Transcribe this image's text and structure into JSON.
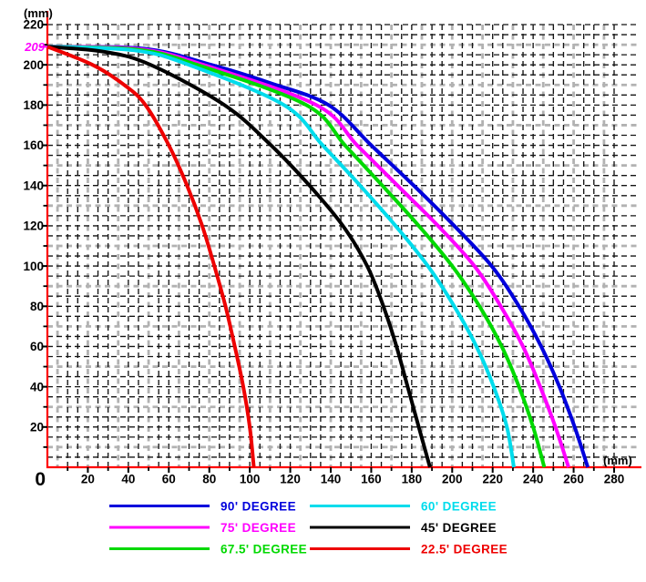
{
  "figure": {
    "y_axis_unit": "(mm)",
    "x_axis_unit": "(mm)",
    "origin_label": "0",
    "highlight_value": "209",
    "x_tick_labels": [
      20,
      40,
      60,
      80,
      100,
      120,
      140,
      160,
      180,
      200,
      220,
      240,
      260,
      280
    ],
    "y_tick_labels": [
      20,
      40,
      60,
      80,
      100,
      120,
      140,
      160,
      180,
      200,
      220
    ]
  },
  "colors": {
    "axis": "#ff0000",
    "grid_minor": "#141414",
    "grid_major": "#b2b2b2",
    "highlight": "#ff00ff"
  },
  "chart_data": {
    "type": "line",
    "title": "",
    "xlabel": "(mm)",
    "ylabel": "(mm)",
    "xlim": [
      0,
      280
    ],
    "ylim": [
      0,
      220
    ],
    "x_tick_step": 20,
    "y_tick_step": 20,
    "grid_step": 5,
    "grid": "dashed",
    "legend_position": "bottom",
    "common_start_point": [
      0,
      209
    ],
    "series": [
      {
        "name": "90' DEGREE",
        "degree": 90,
        "color": "#0000dc",
        "points": [
          [
            0,
            209
          ],
          [
            48,
            208
          ],
          [
            81,
            200
          ],
          [
            110,
            191
          ],
          [
            139,
            180
          ],
          [
            160,
            160
          ],
          [
            181,
            140
          ],
          [
            201,
            120
          ],
          [
            219.5,
            100
          ],
          [
            233,
            80
          ],
          [
            244,
            60
          ],
          [
            253,
            40
          ],
          [
            260.5,
            20
          ],
          [
            267,
            0
          ]
        ]
      },
      {
        "name": "75' DEGREE",
        "degree": 75,
        "color": "#ff00ff",
        "points": [
          [
            0,
            209
          ],
          [
            46,
            207.8
          ],
          [
            77,
            200
          ],
          [
            133,
            180
          ],
          [
            153,
            160
          ],
          [
            173,
            140
          ],
          [
            193,
            120
          ],
          [
            211,
            100
          ],
          [
            224,
            80
          ],
          [
            235,
            60
          ],
          [
            243.5,
            40
          ],
          [
            251,
            20
          ],
          [
            257.5,
            0
          ]
        ]
      },
      {
        "name": "67.5' DEGREE",
        "degree": 67.5,
        "color": "#00d900",
        "points": [
          [
            0,
            209
          ],
          [
            45,
            207.5
          ],
          [
            74,
            200
          ],
          [
            128,
            180
          ],
          [
            147,
            160
          ],
          [
            165.5,
            140
          ],
          [
            183.5,
            120
          ],
          [
            200,
            100
          ],
          [
            213.5,
            80
          ],
          [
            224.5,
            60
          ],
          [
            233,
            40
          ],
          [
            240,
            20
          ],
          [
            245.5,
            0
          ]
        ]
      },
      {
        "name": "60' DEGREE",
        "degree": 60,
        "color": "#00dcec",
        "points": [
          [
            0,
            209
          ],
          [
            43,
            207.2
          ],
          [
            70,
            200
          ],
          [
            117,
            180
          ],
          [
            136,
            160
          ],
          [
            154.5,
            140
          ],
          [
            172,
            120
          ],
          [
            188,
            100
          ],
          [
            201,
            80
          ],
          [
            212,
            60
          ],
          [
            220.5,
            40
          ],
          [
            227,
            20
          ],
          [
            230.5,
            0
          ]
        ]
      },
      {
        "name": "45' DEGREE",
        "degree": 45,
        "color": "#000000",
        "points": [
          [
            0,
            209
          ],
          [
            28,
            206.5
          ],
          [
            51,
            200
          ],
          [
            87.5,
            180
          ],
          [
            110.5,
            160
          ],
          [
            129.5,
            140
          ],
          [
            146,
            120
          ],
          [
            158,
            100
          ],
          [
            166,
            80
          ],
          [
            172.5,
            60
          ],
          [
            178,
            40
          ],
          [
            183.5,
            20
          ],
          [
            189,
            0
          ]
        ]
      },
      {
        "name": "22.5' DEGREE",
        "degree": 22.5,
        "color": "#ee0000",
        "points": [
          [
            0,
            209
          ],
          [
            22.3,
            200
          ],
          [
            38,
            190
          ],
          [
            48.5,
            180
          ],
          [
            60,
            160
          ],
          [
            69,
            140
          ],
          [
            76.5,
            120
          ],
          [
            82.5,
            100
          ],
          [
            88,
            80
          ],
          [
            92.6,
            60
          ],
          [
            96.8,
            40
          ],
          [
            100,
            20
          ],
          [
            102,
            0
          ]
        ]
      }
    ]
  },
  "legend": {
    "items": [
      {
        "label": "90' DEGREE",
        "color": "#0000dc"
      },
      {
        "label": "75' DEGREE",
        "color": "#ff00ff"
      },
      {
        "label": "67.5' DEGREE",
        "color": "#00d900"
      },
      {
        "label": "60' DEGREE",
        "color": "#00dcec"
      },
      {
        "label": "45' DEGREE",
        "color": "#000000"
      },
      {
        "label": "22.5' DEGREE",
        "color": "#ee0000"
      }
    ]
  }
}
